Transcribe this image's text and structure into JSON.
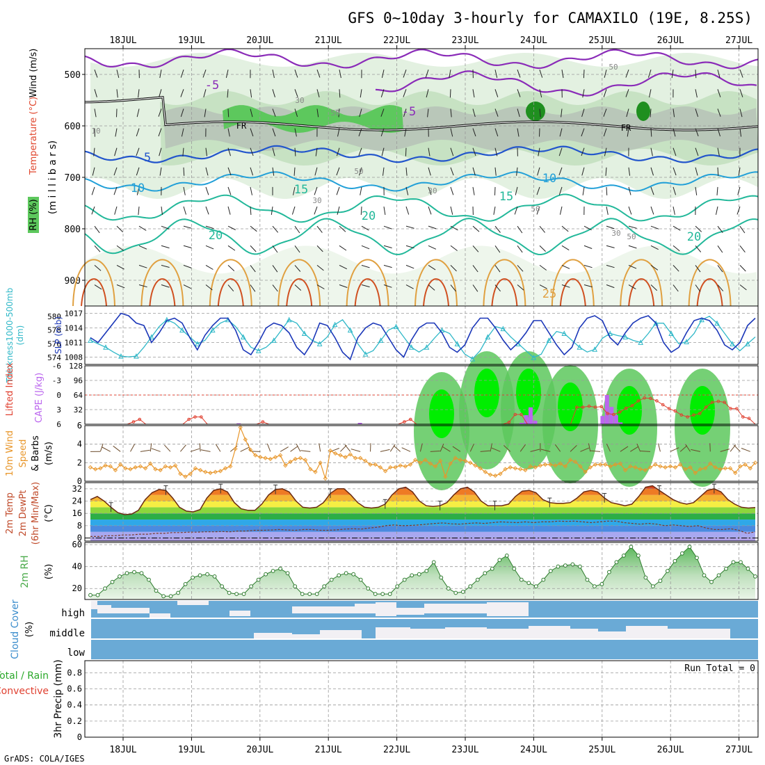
{
  "title": "GFS 0~10day 3-hourly for CAMAXILO (19E, 8.25S)",
  "footer": "GrADS: COLA/IGES",
  "dates": [
    "18JUL",
    "19JUL",
    "20JUL",
    "21JUL",
    "22JUL",
    "23JUL",
    "24JUL",
    "25JUL",
    "26JUL",
    "27JUL"
  ],
  "colors": {
    "rh_light": "#e3f1e1",
    "rh_mid": "#c7e2c3",
    "rh_grey": "#b9c7b9",
    "rh_green": "#5dc85d",
    "rh_bright": "#00ee00",
    "temp_purple": "#8a2bb8",
    "temp_blue": "#2255cc",
    "temp_cyan": "#22a0d8",
    "temp_teal": "#22b89a",
    "temp_orange": "#e0a040",
    "temp_red": "#d05020",
    "slp": "#1a36b8",
    "thickness": "#30b8c8",
    "cape": "#bb66ee",
    "lifted": "#e04030",
    "wind10": "#e8962a",
    "rh2m": "#4aaa4a",
    "cloud": "#6aaad6",
    "cloud_clear": "#f2f0f4"
  },
  "chart_data": [
    {
      "type": "heatmap",
      "panel": "upper-air",
      "ylabel_parts": [
        "RH (%)",
        "Temperature (°C)",
        "Wind (m/s)"
      ],
      "ylabel_units": "(m i l l i b a r s)",
      "ylim": [
        950,
        450
      ],
      "yticks": [
        500,
        600,
        700,
        800,
        900
      ],
      "freezing_label": "FR",
      "temperature_labels": [
        "-5",
        "-5",
        "5",
        "10",
        "10",
        "15",
        "15",
        "20",
        "20",
        "20",
        "25"
      ],
      "rh_labels": [
        "10",
        "30",
        "30",
        "50",
        "50",
        "30",
        "50",
        "50",
        "30",
        "50"
      ],
      "freezing_level_mb": 600
    },
    {
      "type": "line",
      "panel": "slp-thickness",
      "left_label": "Thickness 1000-500mb (dm)",
      "right_label": "SLP (mb)",
      "left_ticks": [
        574,
        576,
        578,
        580
      ],
      "right_ticks": [
        1008,
        1011,
        1014,
        1017
      ],
      "ylim_left": [
        573,
        581.5
      ],
      "ylim_right": [
        1006.5,
        1018.5
      ],
      "series": [
        {
          "name": "SLP (mb)",
          "axis": "right",
          "values": [
            1012,
            1011,
            1013,
            1015,
            1017,
            1016.5,
            1015,
            1014.5,
            1011,
            1013,
            1015.5,
            1016,
            1015,
            1012,
            1009.5,
            1012.5,
            1014.5,
            1016,
            1016,
            1013.5,
            1009.5,
            1008.5,
            1011,
            1014,
            1015,
            1014.5,
            1013,
            1010,
            1008.5,
            1011,
            1015,
            1014.5,
            1012,
            1009,
            1007.5,
            1012,
            1014,
            1015,
            1014.5,
            1012,
            1009.5,
            1008,
            1011.5,
            1014,
            1015,
            1015,
            1013,
            1010,
            1009,
            1010.5,
            1014,
            1016,
            1016,
            1014,
            1011.5,
            1009.5,
            1011,
            1013,
            1015.5,
            1015.5,
            1013,
            1010.5,
            1008.5,
            1010,
            1014,
            1016,
            1016.5,
            1015.5,
            1012,
            1010.5,
            1013,
            1015,
            1016,
            1016.5,
            1015,
            1011,
            1009,
            1010,
            1013,
            1015.5,
            1016,
            1015.5,
            1013.5,
            1010.5,
            1009.5,
            1011,
            1014.5,
            1016
          ]
        },
        {
          "name": "Thickness (dm)",
          "axis": "left",
          "values": [
            576.5,
            576,
            575.5,
            574.8,
            574.2,
            574.1,
            574.2,
            575.5,
            577,
            578.5,
            579.5,
            579,
            578,
            577,
            576,
            576.5,
            578,
            579,
            579.5,
            578.5,
            577,
            575.5,
            575,
            575.5,
            576.5,
            578,
            579.5,
            579,
            577.5,
            576.5,
            576,
            577,
            578.8,
            579.5,
            578,
            576,
            574.5,
            575,
            576.5,
            578,
            578.5,
            577,
            575.5,
            574.8,
            575.5,
            576.8,
            578,
            577.5,
            576,
            574.5,
            573.8,
            575,
            577,
            578.5,
            578.2,
            577,
            576,
            575,
            574,
            574.5,
            576.5,
            577.8,
            577.5,
            576.5,
            575.5,
            574.8,
            575.2,
            576.8,
            577.5,
            577.2,
            577,
            576.5,
            576.2,
            577.5,
            579,
            579,
            577.5,
            576,
            576.3,
            577.5,
            579.5,
            580,
            579,
            577.5,
            576,
            575,
            576,
            577
          ]
        }
      ]
    },
    {
      "type": "bar",
      "panel": "cape-lifted-index",
      "left_label": "Lifted Index",
      "right_label": "CAPE (J/kg)",
      "left_ticks": [
        "-6",
        "-3",
        "0",
        "3",
        "6"
      ],
      "right_ticks": [
        32,
        64,
        96,
        128
      ],
      "cape_max": 128,
      "series": [
        {
          "name": "CAPE (J/kg)",
          "values": [
            0,
            0,
            0,
            0,
            0,
            0,
            0,
            0,
            0,
            0,
            0,
            0,
            0,
            0,
            0,
            0,
            0,
            0,
            0,
            0,
            0,
            0,
            0,
            0,
            0,
            0,
            0,
            0,
            0,
            0,
            0,
            0,
            0,
            2,
            0,
            0,
            0,
            0,
            0,
            0,
            0,
            0,
            0,
            0,
            0,
            0,
            0,
            0,
            0,
            0,
            0,
            0,
            0,
            0,
            0,
            0,
            0,
            0,
            0,
            0,
            3,
            0,
            0,
            0,
            0,
            0,
            0,
            0,
            0,
            0,
            0,
            0,
            0,
            0,
            0,
            0,
            0,
            0,
            0,
            0,
            0,
            0,
            0,
            0,
            0,
            0,
            0,
            0,
            0,
            0,
            0,
            0,
            0,
            0,
            0,
            0,
            3,
            20,
            37,
            8,
            0,
            0,
            0,
            0,
            0,
            0,
            0,
            0,
            0,
            0,
            0,
            0,
            0,
            0,
            18,
            64,
            38,
            20,
            4,
            0,
            0,
            0,
            0,
            0,
            0,
            0,
            0,
            0,
            0,
            0,
            0,
            0,
            0,
            0,
            0,
            0,
            0,
            0,
            0,
            0,
            0,
            0,
            0,
            0,
            0,
            0,
            0,
            0,
            0
          ]
        },
        {
          "name": "Lifted Index",
          "values": [
            6,
            6,
            6,
            6,
            6,
            6,
            6,
            5.5,
            5,
            6,
            6,
            6,
            6,
            6,
            6,
            6,
            5,
            4.5,
            4.5,
            6,
            6,
            6,
            6,
            6,
            6,
            6,
            6,
            6,
            5.5,
            6,
            6,
            6,
            6,
            6,
            6,
            6,
            6,
            6,
            6,
            6,
            6,
            6,
            6,
            6,
            6,
            6,
            6,
            6,
            6,
            6,
            6,
            5.5,
            5,
            6,
            6,
            6,
            6,
            6,
            6,
            6,
            6,
            6,
            6,
            6,
            6,
            6,
            6,
            6,
            5.6,
            4,
            4,
            6,
            6,
            6,
            6,
            6,
            6,
            6,
            6,
            2.5,
            2.5,
            2.3,
            2.5,
            2.4,
            3.8,
            4,
            3.5,
            2.7,
            2.2,
            1.2,
            0.6,
            0.7,
            1.2,
            2,
            2.8,
            3.3,
            4.1,
            4.5,
            4.1,
            3.8,
            2.5,
            1.5,
            1.3,
            1.5,
            2.8,
            2.8,
            4.5,
            4.8,
            6
          ]
        }
      ]
    },
    {
      "type": "line",
      "panel": "10m-wind",
      "ylabel": "10m Wind Speed & Barbs (m/s)",
      "ylim": [
        0,
        6
      ],
      "yticks": [
        0,
        2,
        4,
        6
      ],
      "series": [
        {
          "name": "10m Wind Speed",
          "values": [
            1.5,
            1.3,
            1.4,
            1.7,
            1.6,
            1.2,
            1.8,
            1.4,
            1.3,
            1.5,
            1.6,
            1.4,
            1.9,
            1.3,
            1.2,
            1.6,
            1.5,
            1.7,
            0.8,
            0.5,
            0.8,
            1.4,
            1.2,
            1.0,
            0.9,
            1.0,
            1.1,
            1.4,
            1.6,
            3.5,
            5.8,
            4.5,
            3.4,
            2.8,
            2.6,
            2.5,
            2.4,
            2.6,
            2.8,
            1.7,
            2.1,
            2.4,
            2.5,
            2.3,
            1.3,
            1.0,
            2.0,
            0.3,
            3.3,
            3.0,
            2.8,
            2.6,
            2.9,
            2.5,
            2.5,
            2.2,
            1.8,
            1.8,
            1.5,
            1.1,
            1.5,
            1.5,
            1.7,
            1.6,
            1.8,
            2.3,
            2.0,
            2.3,
            1.9,
            1.6,
            2.2,
            0.5,
            1.9,
            2.5,
            2.3,
            2.2,
            2.0,
            1.7,
            1.4,
            1.0,
            0.7,
            0.6,
            0.8,
            1.3,
            1.5,
            1.4,
            1.3,
            1.2,
            1.6,
            1.5,
            1.7,
            1.8,
            1.8,
            1.7,
            1.9,
            1.6,
            2.3,
            2.1,
            1.6,
            1.0,
            1.5,
            1.8,
            1.8,
            1.8,
            1.6,
            1.8,
            1.9,
            1.2,
            1.6,
            1.5,
            1.3,
            1.2,
            1.5,
            1.8,
            1.6,
            1.5,
            1.6,
            1.5,
            1.8,
            1.3,
            1.5,
            0.9,
            1.3,
            1.4,
            1.9,
            1.5,
            1.3,
            1.4,
            1.4,
            0.9,
            1.6,
            1.8,
            1.4,
            2.0
          ]
        }
      ]
    },
    {
      "type": "area",
      "panel": "2m-temp-dewpoint",
      "ylabel": "2m Temp 2m DewPt (6hr Min/Max) (°C)",
      "ylim": [
        -2,
        36
      ],
      "yticks": [
        0,
        8,
        16,
        24,
        32
      ],
      "series": [
        {
          "name": "2m Temp (°C)",
          "values": [
            25,
            27,
            24,
            20,
            16.5,
            15.2,
            15.5,
            18,
            25,
            29.5,
            31.5,
            31,
            26,
            20,
            17.5,
            17,
            18.5,
            26,
            31,
            32,
            30,
            23,
            19,
            18,
            18,
            22,
            28,
            31.5,
            32,
            30,
            24,
            20,
            19.5,
            20,
            23,
            29,
            32,
            32,
            28,
            23,
            20,
            19.5,
            20,
            22,
            28,
            32,
            33,
            30,
            24,
            21,
            20.5,
            21,
            23,
            28,
            32,
            33,
            30,
            24,
            21,
            21,
            21,
            22,
            27,
            30.5,
            31,
            29.5,
            25,
            23,
            22.5,
            22.5,
            23,
            26,
            30,
            31,
            30,
            26,
            23,
            22,
            21,
            22,
            27,
            33,
            34,
            31,
            28,
            25,
            23,
            22,
            23,
            27,
            31,
            32,
            30,
            25,
            22,
            20,
            19.5,
            19.8
          ]
        },
        {
          "name": "2m DewPt (°C)",
          "values": [
            1,
            1,
            1.5,
            1.5,
            2,
            2,
            2.5,
            2.5,
            3,
            3,
            3.5,
            3.5,
            3.8,
            3.8,
            4,
            4,
            4.2,
            4,
            4.5,
            4.5,
            5,
            5,
            5.2,
            5.5,
            5.2,
            5,
            5.5,
            5.5,
            5,
            5,
            5.3,
            5.8,
            6,
            5.8,
            6.5,
            7,
            8,
            8.5,
            8,
            8.2,
            8.5,
            9,
            9.5,
            9.8,
            9.2,
            9,
            9.5,
            9.8,
            9.5,
            10,
            10.5,
            10.2,
            10,
            10.5,
            10,
            10.5,
            10.5,
            11,
            10.8,
            11,
            10.5,
            10,
            10.5,
            11,
            11,
            10,
            9.5,
            9,
            9.5,
            9,
            8,
            8.5,
            8,
            7.5,
            8,
            6.5,
            5.5,
            5.5,
            6,
            5,
            3,
            4
          ]
        }
      ]
    },
    {
      "type": "area",
      "panel": "2m-rh",
      "ylabel": "2m RH (%)",
      "ylim": [
        10,
        62
      ],
      "yticks": [
        20,
        40,
        60
      ],
      "series": [
        {
          "name": "2m RH (%)",
          "values": [
            14,
            14,
            20,
            26,
            31,
            34,
            35,
            34,
            28,
            18,
            13,
            13,
            16,
            24,
            30,
            32,
            33,
            31,
            22,
            16,
            15,
            15,
            22,
            28,
            33,
            36,
            38,
            34,
            22,
            15,
            15,
            15,
            22,
            28,
            32,
            34,
            33,
            28,
            20,
            15,
            15,
            15,
            22,
            28,
            32,
            33,
            36,
            44,
            30,
            20,
            16,
            17,
            22,
            28,
            34,
            38,
            46,
            50,
            38,
            28,
            25,
            22,
            28,
            36,
            40,
            41,
            42,
            40,
            28,
            22,
            24,
            35,
            44,
            50,
            58,
            50,
            30,
            22,
            27,
            36,
            45,
            52,
            58,
            48,
            32,
            26,
            32,
            38,
            44,
            44,
            38,
            31
          ]
        }
      ]
    },
    {
      "type": "area",
      "panel": "cloud-cover",
      "ylabel": "Cloud Cover (%)",
      "levels": [
        "high",
        "middle",
        "low"
      ]
    },
    {
      "type": "line",
      "panel": "3hr-precip",
      "ylabel": "3hr Precip (mm)",
      "left_labels": [
        "Total / Rain",
        "Convective"
      ],
      "ylim": [
        0,
        1
      ],
      "yticks": [
        "0",
        "0.2",
        "0.4",
        "0.6",
        "0.8"
      ],
      "annotation": "Run Total = 0",
      "series": [
        {
          "name": "Total",
          "values": []
        },
        {
          "name": "Convective",
          "values": []
        }
      ]
    }
  ]
}
